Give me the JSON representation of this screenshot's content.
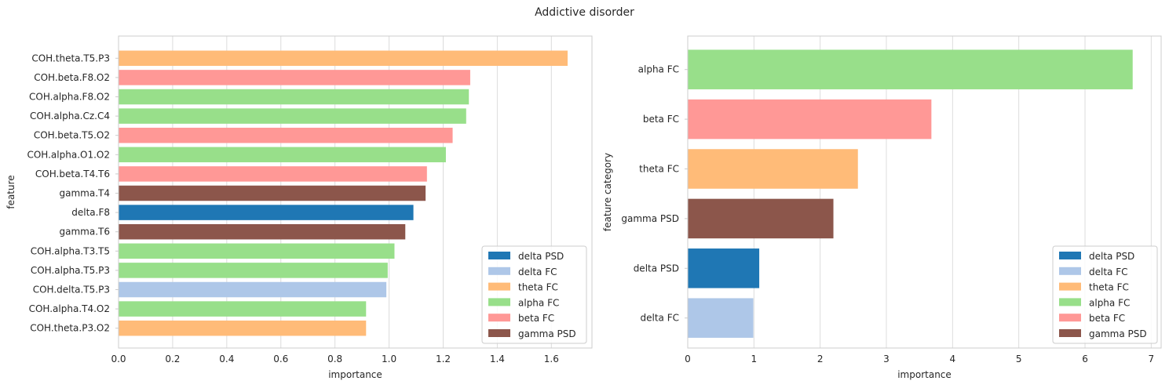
{
  "title": "Addictive disorder",
  "legend_labels": [
    "delta PSD",
    "delta FC",
    "theta FC",
    "alpha FC",
    "beta FC",
    "gamma PSD"
  ],
  "colors": {
    "delta PSD": "#1f77b4",
    "delta FC": "#aec7e8",
    "theta FC": "#ffbb78",
    "alpha FC": "#98df8a",
    "beta FC": "#ff9896",
    "gamma PSD": "#8c564b"
  },
  "chart_data": [
    {
      "type": "bar",
      "orientation": "horizontal",
      "xlabel": "importance",
      "ylabel": "feature",
      "xlim": [
        0,
        1.75
      ],
      "xticks": [
        0.0,
        0.2,
        0.4,
        0.6,
        0.8,
        1.0,
        1.2,
        1.4,
        1.6
      ],
      "xtick_labels": [
        "0.0",
        "0.2",
        "0.4",
        "0.6",
        "0.8",
        "1.0",
        "1.2",
        "1.4",
        "1.6"
      ],
      "grid": "vertical",
      "legend_position": "lower-right",
      "categories": [
        "COH.theta.T5.P3",
        "COH.beta.F8.O2",
        "COH.alpha.F8.O2",
        "COH.alpha.Cz.C4",
        "COH.beta.T5.O2",
        "COH.alpha.O1.O2",
        "COH.beta.T4.T6",
        "gamma.T4",
        "delta.F8",
        "gamma.T6",
        "COH.alpha.T3.T5",
        "COH.alpha.T5.P3",
        "COH.delta.T5.P3",
        "COH.alpha.T4.O2",
        "COH.theta.P3.O2"
      ],
      "values": [
        1.66,
        1.3,
        1.295,
        1.285,
        1.235,
        1.21,
        1.14,
        1.135,
        1.09,
        1.06,
        1.02,
        0.995,
        0.99,
        0.915,
        0.915
      ],
      "groups": [
        "theta FC",
        "beta FC",
        "alpha FC",
        "alpha FC",
        "beta FC",
        "alpha FC",
        "beta FC",
        "gamma PSD",
        "delta PSD",
        "gamma PSD",
        "alpha FC",
        "alpha FC",
        "delta FC",
        "alpha FC",
        "theta FC"
      ]
    },
    {
      "type": "bar",
      "orientation": "horizontal",
      "xlabel": "importance",
      "ylabel": "feature category",
      "xlim": [
        0,
        7.15
      ],
      "xticks": [
        0,
        1,
        2,
        3,
        4,
        5,
        6,
        7
      ],
      "xtick_labels": [
        "0",
        "1",
        "2",
        "3",
        "4",
        "5",
        "6",
        "7"
      ],
      "grid": "vertical",
      "legend_position": "lower-right",
      "categories": [
        "alpha FC",
        "beta FC",
        "theta FC",
        "gamma PSD",
        "delta PSD",
        "delta FC"
      ],
      "values": [
        6.72,
        3.68,
        2.57,
        2.2,
        1.08,
        0.99
      ],
      "groups": [
        "alpha FC",
        "beta FC",
        "theta FC",
        "gamma PSD",
        "delta PSD",
        "delta FC"
      ]
    }
  ]
}
